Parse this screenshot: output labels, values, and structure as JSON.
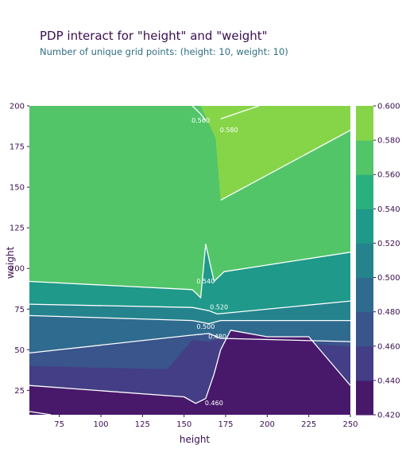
{
  "header": {
    "title": "PDP interact for \"height\" and \"weight\"",
    "subtitle": "Number of unique grid points: (height: 10, weight: 10)"
  },
  "chart_data": {
    "type": "contour",
    "xlabel": "height",
    "ylabel": "weight",
    "xlim": [
      57,
      250
    ],
    "ylim": [
      10,
      200
    ],
    "x_ticks": [
      75,
      100,
      125,
      150,
      175,
      200,
      225,
      250
    ],
    "y_ticks": [
      25,
      50,
      75,
      100,
      125,
      150,
      175,
      200
    ],
    "colorbar": {
      "colormap": "viridis",
      "levels": [
        0.42,
        0.44,
        0.46,
        0.48,
        0.5,
        0.52,
        0.54,
        0.56,
        0.58,
        0.6
      ],
      "tick_labels": [
        "0.420",
        "0.440",
        "0.460",
        "0.480",
        "0.500",
        "0.520",
        "0.540",
        "0.560",
        "0.580",
        "0.600"
      ],
      "colors": [
        "#48196b",
        "#433e85",
        "#3a548c",
        "#2f6b8e",
        "#25838e",
        "#1f998a",
        "#2ab07f",
        "#52c569",
        "#86d549",
        "#c2df23"
      ]
    },
    "contour_labels": [
      {
        "text": "0.560",
        "x": 160,
        "y": 191
      },
      {
        "text": "0.580",
        "x": 177,
        "y": 185
      },
      {
        "text": "0.540",
        "x": 163,
        "y": 92
      },
      {
        "text": "0.520",
        "x": 171,
        "y": 76
      },
      {
        "text": "0.500",
        "x": 163,
        "y": 64
      },
      {
        "text": "0.480",
        "x": 170,
        "y": 58
      },
      {
        "text": "0.460",
        "x": 168,
        "y": 17
      }
    ],
    "regions": [
      {
        "level": 0.57,
        "points": [
          [
            57,
            200
          ],
          [
            250,
            200
          ],
          [
            250,
            10
          ],
          [
            57,
            10
          ]
        ]
      },
      {
        "level": 0.59,
        "points": [
          [
            155,
            200
          ],
          [
            250,
            200
          ],
          [
            250,
            185
          ],
          [
            172,
            142
          ],
          [
            169,
            180
          ],
          [
            160,
            200
          ]
        ]
      },
      {
        "level": 0.53,
        "points": [
          [
            57,
            92
          ],
          [
            155,
            87
          ],
          [
            160,
            82
          ],
          [
            163,
            115
          ],
          [
            168,
            92
          ],
          [
            174,
            98
          ],
          [
            250,
            110
          ],
          [
            250,
            10
          ],
          [
            57,
            10
          ]
        ]
      },
      {
        "level": 0.51,
        "points": [
          [
            57,
            78
          ],
          [
            155,
            76
          ],
          [
            165,
            74
          ],
          [
            170,
            72
          ],
          [
            250,
            80
          ],
          [
            250,
            10
          ],
          [
            57,
            10
          ]
        ]
      },
      {
        "level": 0.49,
        "points": [
          [
            57,
            71
          ],
          [
            155,
            68
          ],
          [
            165,
            66
          ],
          [
            172,
            68
          ],
          [
            250,
            68
          ],
          [
            250,
            10
          ],
          [
            57,
            10
          ]
        ]
      },
      {
        "level": 0.47,
        "points": [
          [
            57,
            48
          ],
          [
            155,
            59
          ],
          [
            165,
            60
          ],
          [
            172,
            57
          ],
          [
            250,
            55
          ],
          [
            250,
            10
          ],
          [
            57,
            10
          ]
        ]
      },
      {
        "level": 0.45,
        "points": [
          [
            57,
            40
          ],
          [
            140,
            38
          ],
          [
            155,
            56
          ],
          [
            165,
            55
          ],
          [
            172,
            57
          ],
          [
            250,
            52
          ],
          [
            250,
            10
          ],
          [
            57,
            10
          ]
        ]
      },
      {
        "level": 0.43,
        "points": [
          [
            57,
            28
          ],
          [
            150,
            21
          ],
          [
            157,
            17
          ],
          [
            163,
            20
          ],
          [
            168,
            35
          ],
          [
            172,
            50
          ],
          [
            178,
            62
          ],
          [
            200,
            58
          ],
          [
            225,
            58
          ],
          [
            250,
            28
          ],
          [
            250,
            10
          ],
          [
            57,
            10
          ]
        ]
      },
      {
        "level": 0.42,
        "points": [
          [
            165,
            10
          ],
          [
            170,
            30
          ],
          [
            176,
            55
          ],
          [
            200,
            54
          ],
          [
            228,
            50
          ],
          [
            250,
            22
          ],
          [
            250,
            10
          ]
        ]
      }
    ],
    "contour_lines": [
      [
        [
          155,
          200
        ],
        [
          160,
          195
        ],
        [
          163,
          191
        ]
      ],
      [
        [
          172,
          192
        ],
        [
          195,
          200
        ]
      ],
      [
        [
          172,
          142
        ],
        [
          250,
          185
        ]
      ],
      [
        [
          57,
          92
        ],
        [
          155,
          87
        ],
        [
          160,
          82
        ],
        [
          163,
          115
        ],
        [
          168,
          92
        ],
        [
          174,
          98
        ],
        [
          250,
          110
        ]
      ],
      [
        [
          57,
          78
        ],
        [
          155,
          76
        ],
        [
          165,
          74
        ],
        [
          170,
          72
        ],
        [
          250,
          80
        ]
      ],
      [
        [
          57,
          71
        ],
        [
          155,
          68
        ],
        [
          165,
          66
        ],
        [
          172,
          68
        ],
        [
          250,
          68
        ]
      ],
      [
        [
          57,
          48
        ],
        [
          155,
          59
        ],
        [
          165,
          60
        ],
        [
          172,
          57
        ],
        [
          250,
          55
        ]
      ],
      [
        [
          57,
          28
        ],
        [
          150,
          21
        ],
        [
          157,
          17
        ],
        [
          163,
          20
        ],
        [
          168,
          35
        ],
        [
          172,
          50
        ],
        [
          178,
          62
        ],
        [
          200,
          58
        ],
        [
          225,
          58
        ],
        [
          250,
          28
        ]
      ],
      [
        [
          57,
          12
        ],
        [
          70,
          10
        ]
      ]
    ]
  }
}
